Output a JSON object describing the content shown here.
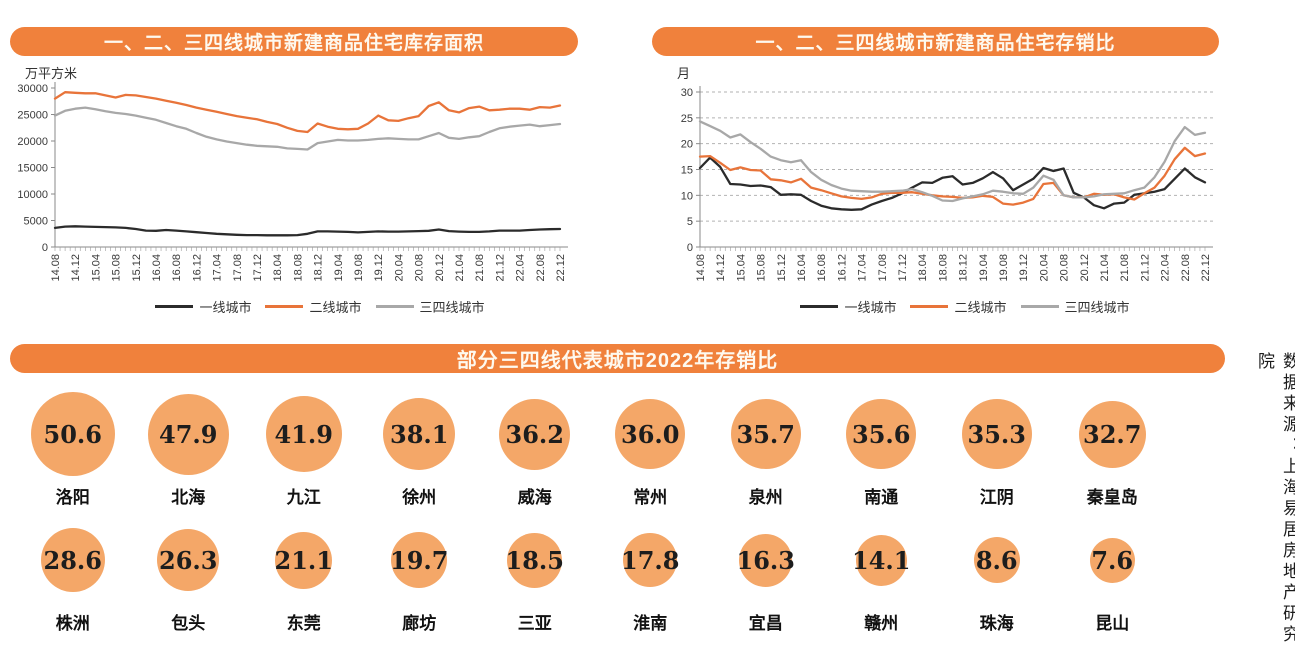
{
  "source_note": "数据来源：上海易居房地产研究院",
  "colors": {
    "bar_orange": "#F0813C",
    "circle_orange": "#F4A768",
    "tier1": "#2B2B2B",
    "tier2": "#E8743A",
    "tier34": "#A8A8A8",
    "title_text": "#FEF9EF"
  },
  "x_ticks": [
    "14.08",
    "14.12",
    "15.04",
    "15.08",
    "15.12",
    "16.04",
    "16.08",
    "16.12",
    "17.04",
    "17.08",
    "17.12",
    "18.04",
    "18.08",
    "18.12",
    "19.04",
    "19.08",
    "19.12",
    "20.04",
    "20.08",
    "20.12",
    "21.04",
    "21.08",
    "21.12",
    "22.04",
    "22.08",
    "22.12"
  ],
  "chart_data": [
    {
      "type": "line",
      "title": "一、二、三四线城市新建商品住宅库存面积",
      "unit_label": "万平方米",
      "ylim": [
        0,
        30000
      ],
      "yticks": [
        0,
        5000,
        10000,
        15000,
        20000,
        25000,
        30000
      ],
      "grid": false,
      "x_step_months": 2,
      "series": [
        {
          "name": "一线城市",
          "color_key": "tier1",
          "values": [
            3600,
            3850,
            3900,
            3850,
            3800,
            3750,
            3700,
            3600,
            3400,
            3100,
            3050,
            3200,
            3100,
            2950,
            2800,
            2650,
            2500,
            2400,
            2300,
            2250,
            2250,
            2200,
            2200,
            2200,
            2250,
            2500,
            2950,
            2950,
            2900,
            2850,
            2750,
            2850,
            2950,
            2900,
            2900,
            2950,
            3000,
            3050,
            3300,
            3000,
            2900,
            2850,
            2850,
            2950,
            3100,
            3100,
            3100,
            3200,
            3300,
            3350,
            3400
          ]
        },
        {
          "name": "二线城市",
          "color_key": "tier2",
          "values": [
            28000,
            29200,
            29100,
            29000,
            29000,
            28600,
            28200,
            28700,
            28600,
            28300,
            28000,
            27600,
            27200,
            26800,
            26300,
            25900,
            25500,
            25100,
            24700,
            24400,
            24100,
            23600,
            23200,
            22500,
            21900,
            21700,
            23300,
            22700,
            22300,
            22200,
            22300,
            23300,
            24800,
            23900,
            23800,
            24300,
            24700,
            26600,
            27300,
            25800,
            25400,
            26200,
            26500,
            25800,
            25900,
            26100,
            26100,
            25900,
            26400,
            26300,
            26700
          ]
        },
        {
          "name": "三四线城市",
          "color_key": "tier34",
          "values": [
            24800,
            25700,
            26100,
            26300,
            26000,
            25600,
            25300,
            25100,
            24800,
            24400,
            24000,
            23400,
            22800,
            22300,
            21500,
            20800,
            20300,
            19900,
            19600,
            19300,
            19100,
            19000,
            18900,
            18600,
            18500,
            18400,
            19600,
            19900,
            20200,
            20100,
            20100,
            20200,
            20400,
            20500,
            20400,
            20300,
            20300,
            20900,
            21500,
            20600,
            20400,
            20700,
            20900,
            21700,
            22400,
            22700,
            22900,
            23100,
            22800,
            23000,
            23200
          ]
        }
      ]
    },
    {
      "type": "line",
      "title": "一、二、三四线城市新建商品住宅存销比",
      "unit_label": "月",
      "ylim": [
        0,
        30
      ],
      "yticks": [
        0,
        5,
        10,
        15,
        20,
        25,
        30
      ],
      "grid": true,
      "x_step_months": 2,
      "series": [
        {
          "name": "一线城市",
          "color_key": "tier1",
          "values": [
            15.3,
            17.3,
            15.5,
            12.2,
            12.1,
            11.8,
            11.9,
            11.6,
            10.1,
            10.2,
            10.1,
            8.9,
            8.0,
            7.5,
            7.3,
            7.2,
            7.3,
            8.2,
            8.9,
            9.5,
            10.4,
            11.5,
            12.5,
            12.4,
            13.4,
            13.7,
            12.1,
            12.4,
            13.3,
            14.5,
            13.3,
            11.0,
            12.1,
            13.2,
            15.3,
            14.7,
            15.2,
            10.5,
            9.6,
            8.1,
            7.5,
            8.4,
            8.6,
            10.1,
            10.4,
            10.7,
            11.2,
            13.2,
            15.2,
            13.5,
            12.5
          ]
        },
        {
          "name": "二线城市",
          "color_key": "tier2",
          "values": [
            17.5,
            17.6,
            16.3,
            14.9,
            15.4,
            14.9,
            14.8,
            13.1,
            12.9,
            12.5,
            13.2,
            11.5,
            11.0,
            10.4,
            9.8,
            9.5,
            9.3,
            9.6,
            10.3,
            10.5,
            10.5,
            10.6,
            10.3,
            10.0,
            9.8,
            9.7,
            9.5,
            9.6,
            9.9,
            9.7,
            8.4,
            8.2,
            8.6,
            9.3,
            12.2,
            12.4,
            10.0,
            9.6,
            9.6,
            10.3,
            10.1,
            10.2,
            9.6,
            9.2,
            10.4,
            11.5,
            13.8,
            17.0,
            19.2,
            17.6,
            18.1
          ]
        },
        {
          "name": "三四线城市",
          "color_key": "tier34",
          "values": [
            24.3,
            23.4,
            22.5,
            21.2,
            21.8,
            20.3,
            19.0,
            17.5,
            16.8,
            16.4,
            16.8,
            14.5,
            13.0,
            12.0,
            11.3,
            10.9,
            10.8,
            10.7,
            10.7,
            10.8,
            10.9,
            11.2,
            10.6,
            9.9,
            9.0,
            8.9,
            9.4,
            9.8,
            10.2,
            10.9,
            10.7,
            10.4,
            10.3,
            11.5,
            13.8,
            13.0,
            10.0,
            9.6,
            9.6,
            9.8,
            10.2,
            10.3,
            10.4,
            11.0,
            11.5,
            13.5,
            16.5,
            20.5,
            23.2,
            21.7,
            22.1
          ]
        }
      ]
    },
    {
      "type": "bubble",
      "title": "部分三四线代表城市2022年存销比",
      "rows": [
        [
          {
            "city": "洛阳",
            "value": "50.6"
          },
          {
            "city": "北海",
            "value": "47.9"
          },
          {
            "city": "九江",
            "value": "41.9"
          },
          {
            "city": "徐州",
            "value": "38.1"
          },
          {
            "city": "威海",
            "value": "36.2"
          },
          {
            "city": "常州",
            "value": "36.0"
          },
          {
            "city": "泉州",
            "value": "35.7"
          },
          {
            "city": "南通",
            "value": "35.6"
          },
          {
            "city": "江阴",
            "value": "35.3"
          },
          {
            "city": "秦皇岛",
            "value": "32.7"
          }
        ],
        [
          {
            "city": "株洲",
            "value": "28.6"
          },
          {
            "city": "包头",
            "value": "26.3"
          },
          {
            "city": "东莞",
            "value": "21.1"
          },
          {
            "city": "廊坊",
            "value": "19.7"
          },
          {
            "city": "三亚",
            "value": "18.5"
          },
          {
            "city": "淮南",
            "value": "17.8"
          },
          {
            "city": "宜昌",
            "value": "16.3"
          },
          {
            "city": "赣州",
            "value": "14.1"
          },
          {
            "city": "珠海",
            "value": "8.6"
          },
          {
            "city": "昆山",
            "value": "7.6"
          }
        ]
      ]
    }
  ]
}
